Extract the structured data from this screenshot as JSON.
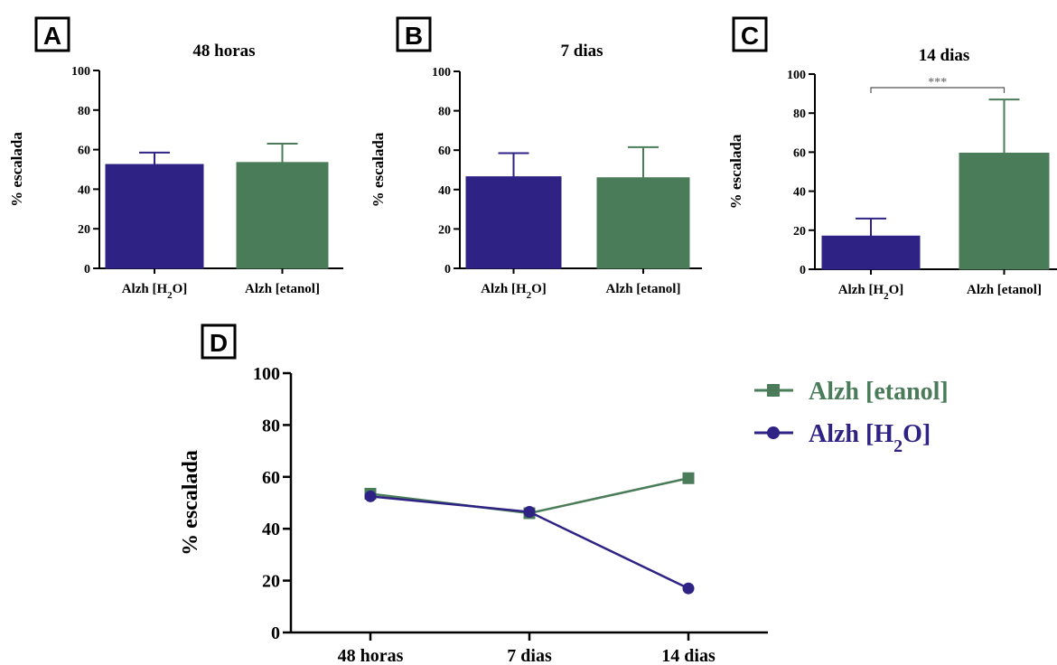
{
  "colors": {
    "h2o": "#2e2284",
    "etanol": "#4a7c59",
    "axis": "#000000"
  },
  "chart_data": [
    {
      "panel": "A",
      "type": "bar",
      "title": "48 horas",
      "ylabel": "% escalada",
      "ylim": [
        0,
        100
      ],
      "yticks": [
        "0",
        "20",
        "40",
        "60",
        "80",
        "100"
      ],
      "categories": [
        "Alzh [H2O]",
        "Alzh [etanol]"
      ],
      "values": [
        52.5,
        53.5
      ],
      "errors": [
        6.0,
        9.5
      ]
    },
    {
      "panel": "B",
      "type": "bar",
      "title": "7 dias",
      "ylabel": "% escalada",
      "ylim": [
        0,
        100
      ],
      "yticks": [
        "0",
        "20",
        "40",
        "60",
        "80",
        "100"
      ],
      "categories": [
        "Alzh [H2O]",
        "Alzh [etanol]"
      ],
      "values": [
        46.5,
        46.0
      ],
      "errors": [
        12.0,
        15.5
      ]
    },
    {
      "panel": "C",
      "type": "bar",
      "title": "14 dias",
      "ylabel": "% escalada",
      "ylim": [
        0,
        100
      ],
      "yticks": [
        "0",
        "20",
        "40",
        "60",
        "80",
        "100"
      ],
      "categories": [
        "Alzh [H2O]",
        "Alzh [etanol]"
      ],
      "values": [
        17.0,
        59.5
      ],
      "errors": [
        9.0,
        27.5
      ],
      "significance": "***"
    },
    {
      "panel": "D",
      "type": "line",
      "ylabel": "% escalada",
      "ylim": [
        0,
        100
      ],
      "yticks": [
        "0",
        "20",
        "40",
        "60",
        "80",
        "100"
      ],
      "categories": [
        "48 horas",
        "7 dias",
        "14 dias"
      ],
      "series": [
        {
          "name": "Alzh [etanol]",
          "marker": "square",
          "values": [
            53.5,
            46.0,
            59.5
          ]
        },
        {
          "name": "Alzh [H2O]",
          "marker": "circle",
          "values": [
            52.5,
            46.5,
            17.0
          ]
        }
      ]
    }
  ]
}
